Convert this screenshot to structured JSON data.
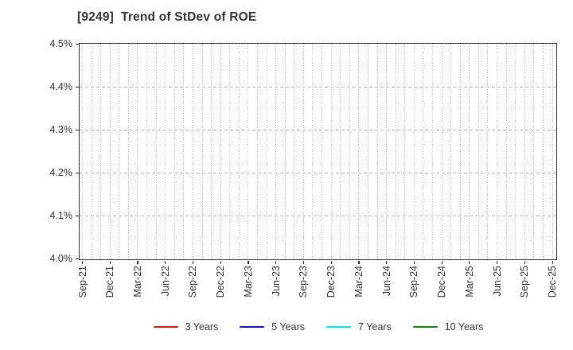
{
  "header": {
    "title": "[9249]  Trend of StDev of ROE"
  },
  "chart_data": {
    "type": "line",
    "title": "[9249]  Trend of StDev of ROE",
    "xlabel": "",
    "ylabel": "",
    "ylim": [
      4.0,
      4.5
    ],
    "y_tick_labels": [
      "4.5%",
      "4.4%",
      "4.3%",
      "4.2%",
      "4.1%",
      "4.0%"
    ],
    "y_tick_values": [
      4.5,
      4.4,
      4.3,
      4.2,
      4.1,
      4.0
    ],
    "x_tick_labels": [
      "Sep-21",
      "Dec-21",
      "Mar-22",
      "Jun-22",
      "Sep-22",
      "Dec-22",
      "Mar-23",
      "Jun-23",
      "Sep-23",
      "Dec-23",
      "Mar-24",
      "Jun-24",
      "Sep-24",
      "Dec-24",
      "Mar-25",
      "Jun-25",
      "Sep-25",
      "Dec-25"
    ],
    "minor_vgrid_total": 52,
    "months_per_labeled_tick": 3,
    "grid": true,
    "grid_color": "#bbbbbb",
    "axis_color": "#2e2e2e",
    "text_color": "#333333",
    "legend_position": "bottom-center",
    "series": [
      {
        "name": "3 Years",
        "color": "#ee1111",
        "values": []
      },
      {
        "name": "5 Years",
        "color": "#1111ee",
        "values": []
      },
      {
        "name": "7 Years",
        "color": "#00e5ee",
        "values": []
      },
      {
        "name": "10 Years",
        "color": "#118811",
        "values": []
      }
    ],
    "note": "Plot area is empty - no data points are drawn for any series."
  }
}
